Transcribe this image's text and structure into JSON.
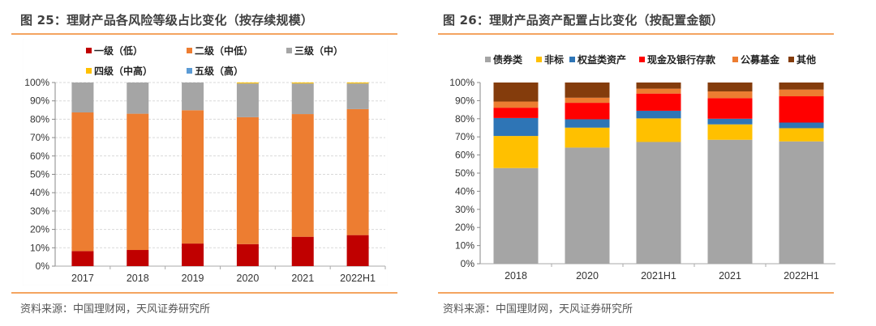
{
  "left_panel": {
    "title": "图 25：理财产品各风险等级占比变化（按存续规模）",
    "source": "资料来源：中国理财网，天风证券研究所"
  },
  "right_panel": {
    "title": "图 26：理财产品资产配置占比变化（按配置金额）",
    "source": "资料来源：中国理财网，天风证券研究所"
  },
  "chart_data": [
    {
      "type": "bar",
      "stacked": true,
      "title": "理财产品各风险等级占比变化（按存续规模）",
      "xlabel": "",
      "ylabel": "",
      "ylim": [
        0,
        100
      ],
      "yticks": [
        "0%",
        "10%",
        "20%",
        "30%",
        "40%",
        "50%",
        "60%",
        "70%",
        "80%",
        "90%",
        "100%"
      ],
      "grid": true,
      "legend_position": "top",
      "categories": [
        "2017",
        "2018",
        "2019",
        "2020",
        "2021",
        "2022H1"
      ],
      "series": [
        {
          "name": "一级（低）",
          "color": "#c00000",
          "values": [
            8.2,
            8.8,
            12.3,
            12.0,
            16.0,
            16.9
          ]
        },
        {
          "name": "二级（中低）",
          "color": "#ed7d31",
          "values": [
            75.5,
            74.2,
            72.6,
            69.1,
            66.8,
            68.6
          ]
        },
        {
          "name": "三级（中）",
          "color": "#a5a5a5",
          "values": [
            16.3,
            17.0,
            15.1,
            18.4,
            16.7,
            14.0
          ]
        },
        {
          "name": "四级（中高）",
          "color": "#ffc000",
          "values": [
            0.0,
            0.0,
            0.0,
            0.5,
            0.5,
            0.5
          ]
        },
        {
          "name": "五级（高）",
          "color": "#5b9bd5",
          "values": [
            0.0,
            0.0,
            0.0,
            0.0,
            0.0,
            0.0
          ]
        }
      ]
    },
    {
      "type": "bar",
      "stacked": true,
      "title": "理财产品资产配置占比变化（按配置金额）",
      "xlabel": "",
      "ylabel": "",
      "ylim": [
        0,
        100
      ],
      "yticks": [
        "0%",
        "10%",
        "20%",
        "30%",
        "40%",
        "50%",
        "60%",
        "70%",
        "80%",
        "90%",
        "100%"
      ],
      "grid": false,
      "legend_position": "top",
      "categories": [
        "2018",
        "2020",
        "2021H1",
        "2021",
        "2022H1"
      ],
      "series": [
        {
          "name": "债券类",
          "color": "#a5a5a5",
          "values": [
            52.8,
            64.1,
            67.2,
            68.4,
            67.5
          ]
        },
        {
          "name": "非标",
          "color": "#ffc000",
          "values": [
            17.7,
            11.0,
            13.0,
            8.5,
            7.3
          ]
        },
        {
          "name": "权益类资产",
          "color": "#2e75b6",
          "values": [
            9.9,
            4.6,
            4.2,
            3.1,
            3.1
          ]
        },
        {
          "name": "现金及银行存款",
          "color": "#ff0000",
          "values": [
            5.7,
            9.1,
            9.5,
            11.4,
            14.5
          ]
        },
        {
          "name": "公募基金",
          "color": "#ed7d31",
          "values": [
            3.4,
            2.8,
            2.7,
            3.7,
            3.7
          ]
        },
        {
          "name": "其他",
          "color": "#843c0c",
          "values": [
            10.5,
            8.4,
            3.4,
            4.9,
            3.9
          ]
        }
      ]
    }
  ]
}
